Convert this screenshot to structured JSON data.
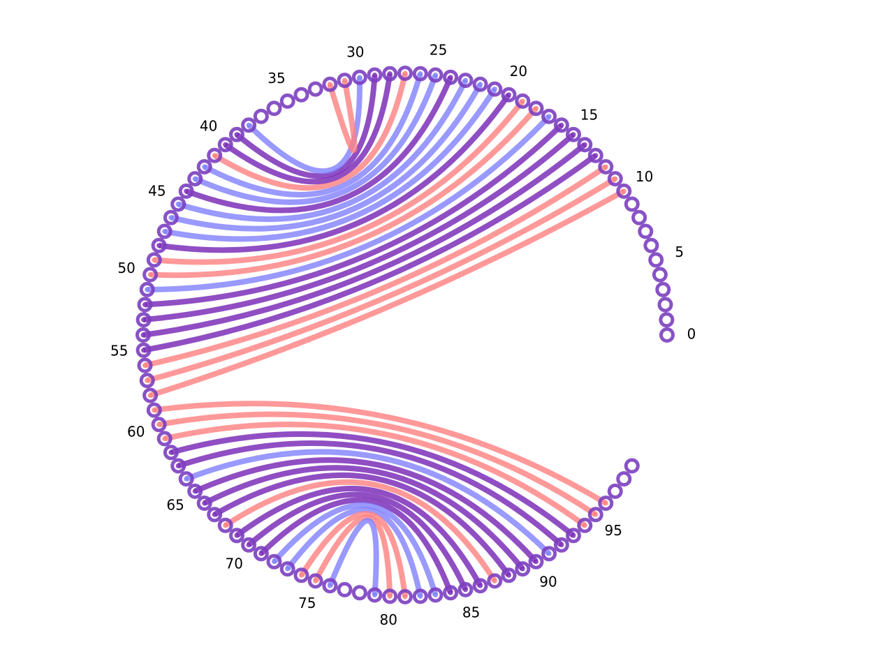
{
  "colors": {
    "pair_color": "#7d2fb8",
    "anchor_color": "#7d2fb8",
    "node_ring": "#7b3fc0",
    "node_center": "#ffffff",
    "link_red": "#ff8080",
    "link_blue": "#8080ff",
    "link_purple": "#7d2fb8"
  },
  "chart_data": {
    "type": "arc-diagram",
    "node_count": 100,
    "tick_labels": [
      "0",
      "5",
      "10",
      "15",
      "20",
      "25",
      "30",
      "35",
      "40",
      "45",
      "50",
      "55",
      "60",
      "65",
      "70",
      "75",
      "80",
      "85",
      "90",
      "95"
    ],
    "tick_values": [
      0,
      5,
      10,
      15,
      20,
      25,
      30,
      35,
      40,
      45,
      50,
      55,
      60,
      65,
      70,
      75,
      80,
      85,
      90,
      95
    ],
    "links": [
      {
        "source": 10,
        "target": 58,
        "type": "red"
      },
      {
        "source": 11,
        "target": 57,
        "type": "red"
      },
      {
        "source": 12,
        "target": 56,
        "type": "red"
      },
      {
        "source": 13,
        "target": 55,
        "type": "purple"
      },
      {
        "source": 14,
        "target": 54,
        "type": "purple"
      },
      {
        "source": 15,
        "target": 53,
        "type": "purple"
      },
      {
        "source": 16,
        "target": 52,
        "type": "purple"
      },
      {
        "source": 17,
        "target": 51,
        "type": "blue"
      },
      {
        "source": 18,
        "target": 50,
        "type": "red"
      },
      {
        "source": 19,
        "target": 49,
        "type": "red"
      },
      {
        "source": 20,
        "target": 48,
        "type": "purple"
      },
      {
        "source": 21,
        "target": 47,
        "type": "blue"
      },
      {
        "source": 22,
        "target": 46,
        "type": "blue"
      },
      {
        "source": 23,
        "target": 45,
        "type": "blue"
      },
      {
        "source": 24,
        "target": 44,
        "type": "purple"
      },
      {
        "source": 25,
        "target": 43,
        "type": "blue"
      },
      {
        "source": 26,
        "target": 42,
        "type": "blue"
      },
      {
        "source": 27,
        "target": 41,
        "type": "red"
      },
      {
        "source": 28,
        "target": 40,
        "type": "purple"
      },
      {
        "source": 29,
        "target": 39,
        "type": "purple"
      },
      {
        "source": 30,
        "target": 38,
        "type": "blue"
      },
      {
        "source": 31,
        "target": 32,
        "type": "red"
      },
      {
        "source": 59,
        "target": 96,
        "type": "red"
      },
      {
        "source": 60,
        "target": 95,
        "type": "red"
      },
      {
        "source": 61,
        "target": 94,
        "type": "red"
      },
      {
        "source": 62,
        "target": 93,
        "type": "purple"
      },
      {
        "source": 63,
        "target": 92,
        "type": "purple"
      },
      {
        "source": 64,
        "target": 91,
        "type": "blue"
      },
      {
        "source": 65,
        "target": 90,
        "type": "purple"
      },
      {
        "source": 66,
        "target": 89,
        "type": "purple"
      },
      {
        "source": 67,
        "target": 88,
        "type": "purple"
      },
      {
        "source": 68,
        "target": 87,
        "type": "red"
      },
      {
        "source": 69,
        "target": 86,
        "type": "purple"
      },
      {
        "source": 70,
        "target": 85,
        "type": "purple"
      },
      {
        "source": 71,
        "target": 84,
        "type": "purple"
      },
      {
        "source": 72,
        "target": 83,
        "type": "blue"
      },
      {
        "source": 73,
        "target": 82,
        "type": "blue"
      },
      {
        "source": 74,
        "target": 81,
        "type": "red"
      },
      {
        "source": 75,
        "target": 80,
        "type": "red"
      },
      {
        "source": 76,
        "target": 79,
        "type": "blue"
      }
    ]
  }
}
